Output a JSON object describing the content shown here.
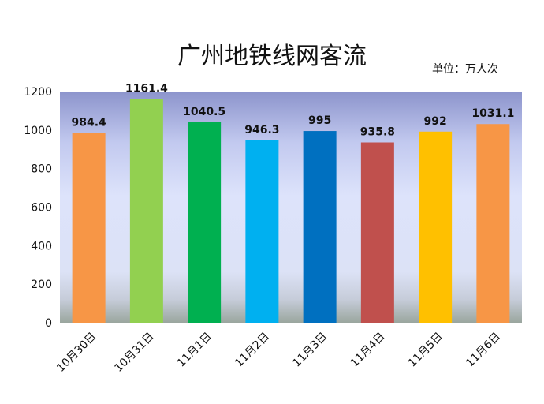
{
  "chart_data": {
    "type": "bar",
    "title": "广州地铁线网客流",
    "unit": "单位：万人次",
    "categories": [
      "10月30日",
      "10月31日",
      "11月1日",
      "11月2日",
      "11月3日",
      "11月4日",
      "11月5日",
      "11月6日"
    ],
    "values": [
      984.4,
      1161.4,
      1040.5,
      946.3,
      995,
      935.8,
      992,
      1031.1
    ],
    "value_labels": [
      "984.4",
      "1161.4",
      "1040.5",
      "946.3",
      "995",
      "935.8",
      "992",
      "1031.1"
    ],
    "colors": [
      "#F79646",
      "#92D050",
      "#00B050",
      "#00B0F0",
      "#0070C0",
      "#C0504D",
      "#FFC000",
      "#F79646"
    ],
    "yticks": [
      0,
      200,
      400,
      600,
      800,
      1000,
      1200
    ],
    "ylim": [
      0,
      1200
    ],
    "xlabel": "",
    "ylabel": ""
  }
}
